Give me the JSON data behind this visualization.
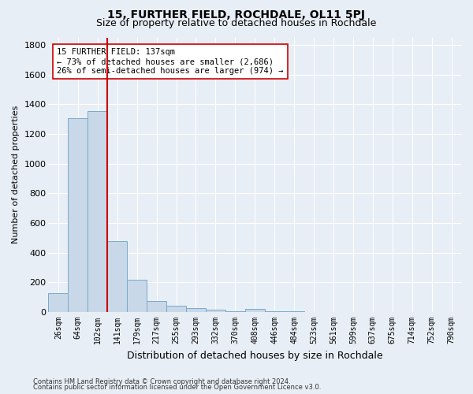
{
  "title": "15, FURTHER FIELD, ROCHDALE, OL11 5PJ",
  "subtitle": "Size of property relative to detached houses in Rochdale",
  "xlabel": "Distribution of detached houses by size in Rochdale",
  "ylabel": "Number of detached properties",
  "bar_labels": [
    "26sqm",
    "64sqm",
    "102sqm",
    "141sqm",
    "179sqm",
    "217sqm",
    "255sqm",
    "293sqm",
    "332sqm",
    "370sqm",
    "408sqm",
    "446sqm",
    "484sqm",
    "523sqm",
    "561sqm",
    "599sqm",
    "637sqm",
    "675sqm",
    "714sqm",
    "752sqm",
    "790sqm"
  ],
  "bar_values": [
    130,
    1305,
    1355,
    480,
    220,
    75,
    42,
    25,
    15,
    5,
    20,
    5,
    5,
    0,
    0,
    0,
    0,
    0,
    0,
    0,
    0
  ],
  "bar_color": "#c8d8e8",
  "bar_edge_color": "#7aaac8",
  "vline_pos": 2.5,
  "annotation_line1": "15 FURTHER FIELD: 137sqm",
  "annotation_line2": "← 73% of detached houses are smaller (2,686)",
  "annotation_line3": "26% of semi-detached houses are larger (974) →",
  "vline_color": "#cc0000",
  "ylim": [
    0,
    1850
  ],
  "yticks": [
    0,
    200,
    400,
    600,
    800,
    1000,
    1200,
    1400,
    1600,
    1800
  ],
  "footnote1": "Contains HM Land Registry data © Crown copyright and database right 2024.",
  "footnote2": "Contains public sector information licensed under the Open Government Licence v3.0.",
  "bg_color": "#e8eef5",
  "plot_bg_color": "#e8eef5",
  "title_fontsize": 10,
  "subtitle_fontsize": 9,
  "annotation_fontsize": 7.5,
  "tick_fontsize": 7,
  "ylabel_fontsize": 8,
  "xlabel_fontsize": 9
}
